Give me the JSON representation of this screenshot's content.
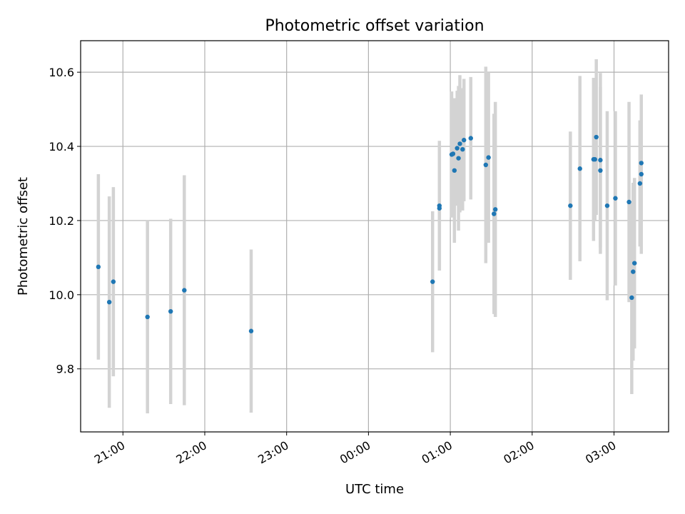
{
  "chart_data": {
    "type": "scatter",
    "title": "Photometric offset variation",
    "xlabel": "UTC time",
    "ylabel": "Photometric offset",
    "x_axis_kind": "time",
    "x_reference_date": "",
    "xlim": [
      "20:29",
      "03:40"
    ],
    "ylim": [
      9.63,
      10.685
    ],
    "x_ticks": [
      "21:00",
      "22:00",
      "23:00",
      "00:00",
      "01:00",
      "02:00",
      "03:00"
    ],
    "y_ticks": [
      9.8,
      10.0,
      10.2,
      10.4,
      10.6
    ],
    "y_tick_labels": [
      "9.8",
      "10.0",
      "10.2",
      "10.4",
      "10.6"
    ],
    "grid": true,
    "legend": "none",
    "marker_color": "#1f77b4",
    "errorbar_color": "#d3d3d3",
    "points": [
      {
        "x": "20:42",
        "y": 10.075,
        "err": 0.25
      },
      {
        "x": "20:50",
        "y": 9.98,
        "err": 0.285
      },
      {
        "x": "20:53",
        "y": 10.035,
        "err": 0.255
      },
      {
        "x": "21:18",
        "y": 9.94,
        "err": 0.26
      },
      {
        "x": "21:35",
        "y": 9.955,
        "err": 0.25
      },
      {
        "x": "21:45",
        "y": 10.012,
        "err": 0.31
      },
      {
        "x": "22:34",
        "y": 9.902,
        "err": 0.22
      },
      {
        "x": "00:47",
        "y": 10.035,
        "err": 0.19
      },
      {
        "x": "00:52",
        "y": 10.24,
        "err": 0.175
      },
      {
        "x": "00:52",
        "y": 10.233,
        "err": 0.165
      },
      {
        "x": "01:01",
        "y": 10.378,
        "err": 0.17
      },
      {
        "x": "01:02",
        "y": 10.38,
        "err": 0.15
      },
      {
        "x": "01:03",
        "y": 10.335,
        "err": 0.195
      },
      {
        "x": "01:05",
        "y": 10.395,
        "err": 0.155
      },
      {
        "x": "01:06",
        "y": 10.368,
        "err": 0.195
      },
      {
        "x": "01:07",
        "y": 10.407,
        "err": 0.185
      },
      {
        "x": "01:09",
        "y": 10.392,
        "err": 0.165
      },
      {
        "x": "01:10",
        "y": 10.417,
        "err": 0.165
      },
      {
        "x": "01:15",
        "y": 10.422,
        "err": 0.165
      },
      {
        "x": "01:26",
        "y": 10.35,
        "err": 0.265
      },
      {
        "x": "01:28",
        "y": 10.37,
        "err": 0.23
      },
      {
        "x": "01:32",
        "y": 10.218,
        "err": 0.27
      },
      {
        "x": "01:33",
        "y": 10.23,
        "err": 0.29
      },
      {
        "x": "02:28",
        "y": 10.24,
        "err": 0.2
      },
      {
        "x": "02:35",
        "y": 10.34,
        "err": 0.25
      },
      {
        "x": "02:45",
        "y": 10.365,
        "err": 0.22
      },
      {
        "x": "02:46",
        "y": 10.365,
        "err": 0.165
      },
      {
        "x": "02:47",
        "y": 10.425,
        "err": 0.21
      },
      {
        "x": "02:50",
        "y": 10.363,
        "err": 0.235
      },
      {
        "x": "02:50",
        "y": 10.335,
        "err": 0.225
      },
      {
        "x": "02:55",
        "y": 10.24,
        "err": 0.255
      },
      {
        "x": "03:01",
        "y": 10.26,
        "err": 0.235
      },
      {
        "x": "03:11",
        "y": 10.25,
        "err": 0.27
      },
      {
        "x": "03:13",
        "y": 9.992,
        "err": 0.26
      },
      {
        "x": "03:14",
        "y": 10.062,
        "err": 0.24
      },
      {
        "x": "03:15",
        "y": 10.085,
        "err": 0.23
      },
      {
        "x": "03:19",
        "y": 10.3,
        "err": 0.17
      },
      {
        "x": "03:20",
        "y": 10.355,
        "err": 0.18
      },
      {
        "x": "03:20",
        "y": 10.325,
        "err": 0.215
      }
    ]
  }
}
